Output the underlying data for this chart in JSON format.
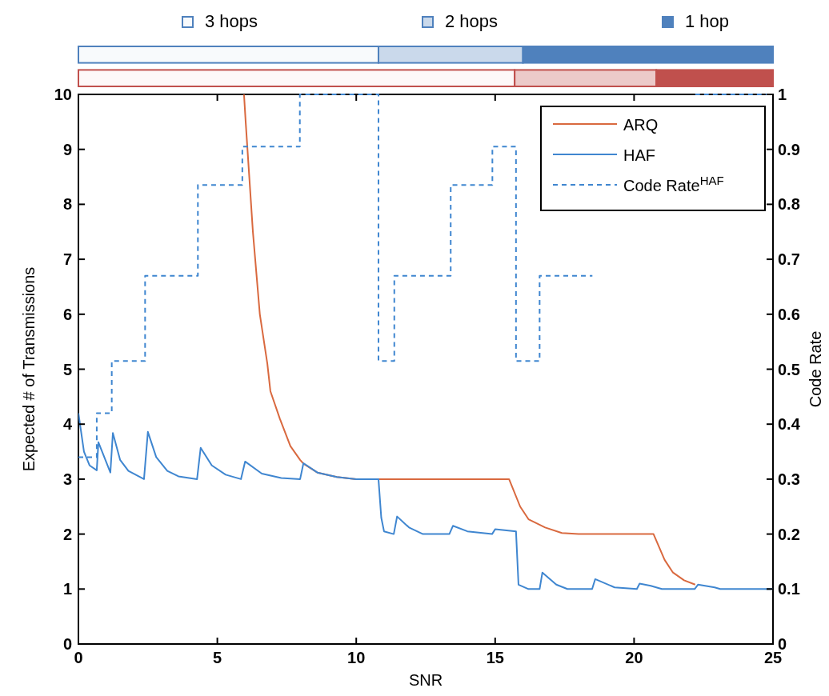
{
  "chart_data": [
    {
      "type": "bar",
      "orientation": "horizontal",
      "stacked": true,
      "categories": [
        null,
        null
      ],
      "xlim": [
        0,
        25
      ],
      "tick_labels": false,
      "legend": "top",
      "series": [
        {
          "name": "3 hops",
          "colors": [
            "#4f81bd",
            "#c0504d"
          ],
          "values": [
            10.8,
            15.7
          ]
        },
        {
          "name": "2 hops",
          "colors": [
            "#4f81bd",
            "#c0504d"
          ],
          "values": [
            5.2,
            5.1
          ]
        },
        {
          "name": "1 hop",
          "colors": [
            "#4f81bd",
            "#c0504d"
          ],
          "values": [
            9.0,
            4.2
          ]
        }
      ]
    },
    {
      "type": "line",
      "xlabel": "SNR",
      "ylabel": "Expected # of Transmissions",
      "y2label": "Code Rate",
      "xlim": [
        0,
        25
      ],
      "xticks": [
        0,
        5,
        10,
        15,
        20,
        25
      ],
      "ylim": [
        0,
        10
      ],
      "yticks": [
        0,
        1,
        2,
        3,
        4,
        5,
        6,
        7,
        8,
        9,
        10
      ],
      "y2lim": [
        0,
        1
      ],
      "y2ticks": [
        0,
        0.1,
        0.2,
        0.3,
        0.4,
        0.5,
        0.6,
        0.7,
        0.8,
        0.9,
        1
      ],
      "legend": "top right",
      "grid": false,
      "series": [
        {
          "name": "ARQ",
          "color": "#d9693f",
          "x": [
            5.96,
            6.02,
            6.28,
            6.53,
            6.8,
            6.91,
            7.25,
            7.63,
            7.98,
            8.1,
            8.6,
            9.3,
            10,
            10.8,
            15.5,
            15.9,
            16.2,
            16.8,
            17.4,
            18.0,
            20.7,
            21.1,
            21.4,
            21.8,
            22.2
          ],
          "values": [
            10,
            9.5,
            7.5,
            6.0,
            5.1,
            4.6,
            4.1,
            3.6,
            3.35,
            3.28,
            3.12,
            3.04,
            3.0,
            3.0,
            3.0,
            2.5,
            2.27,
            2.12,
            2.02,
            2.0,
            2.0,
            1.53,
            1.3,
            1.16,
            1.08
          ]
        },
        {
          "name": "HAF",
          "color": "#3f86d0",
          "x": [
            0,
            0.2,
            0.4,
            0.66,
            0.72,
            1.15,
            1.24,
            1.5,
            1.8,
            2.36,
            2.5,
            2.8,
            3.2,
            3.6,
            4.27,
            4.4,
            4.8,
            5.3,
            5.85,
            6.0,
            6.6,
            7.3,
            7.98,
            8.1,
            8.6,
            9.3,
            10,
            10.8,
            10.9,
            11.0,
            11.35,
            11.47,
            11.9,
            12.4,
            13.35,
            13.48,
            14.0,
            14.89,
            15.0,
            15.75,
            15.84,
            16.2,
            16.6,
            16.7,
            17.2,
            17.6,
            18.49,
            18.6,
            19.3,
            20.1,
            20.2,
            20.6,
            21.0,
            22.18,
            22.3,
            22.9,
            23.1,
            25
          ],
          "values": [
            4.2,
            3.5,
            3.25,
            3.16,
            3.67,
            3.12,
            3.84,
            3.35,
            3.15,
            3.0,
            3.86,
            3.4,
            3.15,
            3.05,
            3.0,
            3.57,
            3.25,
            3.08,
            3.0,
            3.32,
            3.1,
            3.02,
            3.0,
            3.29,
            3.12,
            3.04,
            3.0,
            3.0,
            2.3,
            2.05,
            2.0,
            2.32,
            2.12,
            2.0,
            2.0,
            2.15,
            2.05,
            2.0,
            2.09,
            2.05,
            1.08,
            1.0,
            1.0,
            1.3,
            1.08,
            1.0,
            1.0,
            1.18,
            1.03,
            1.0,
            1.1,
            1.06,
            1.0,
            1.0,
            1.08,
            1.03,
            1.0,
            1.0
          ]
        },
        {
          "name": "Code Rate$^{HAF}$",
          "type": "step",
          "axis": "y2",
          "line_style": "dashed",
          "color": "#3f86d0",
          "x": [
            0,
            0.66,
            1.2,
            2.4,
            4.3,
            5.9,
            7.97,
            10.8,
            11.37,
            13.4,
            14.9,
            15.75,
            16.6,
            18.5,
            22.2,
            25
          ],
          "values": [
            0.34,
            0.42,
            0.515,
            0.67,
            0.835,
            0.905,
            1.0,
            0.515,
            0.67,
            0.835,
            0.905,
            0.515,
            0.67,
            null,
            1.0,
            1.0
          ]
        }
      ]
    }
  ]
}
